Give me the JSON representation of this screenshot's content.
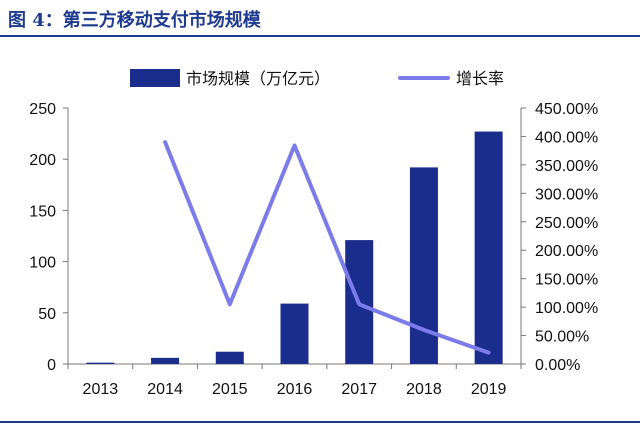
{
  "figure": {
    "title": "图 4：第三方移动支付市场规模"
  },
  "chart_data": {
    "type": "bar",
    "categories": [
      "2013",
      "2014",
      "2015",
      "2016",
      "2017",
      "2018",
      "2019"
    ],
    "series": [
      {
        "name": "市场规模（万亿元）",
        "type": "bar",
        "axis": "left",
        "color": "#1a2c8c",
        "values": [
          1.3,
          6,
          12,
          59,
          121,
          192,
          227
        ]
      },
      {
        "name": "增长率",
        "type": "line",
        "axis": "right",
        "color": "#7b7bea",
        "values": [
          null,
          390,
          105,
          384,
          105,
          60,
          20
        ]
      }
    ],
    "y_left": {
      "ylim": [
        0,
        250
      ],
      "ticks": [
        "0",
        "50",
        "100",
        "150",
        "200",
        "250"
      ]
    },
    "y_right": {
      "ylim": [
        0,
        450
      ],
      "ticks": [
        "0.00%",
        "50.00%",
        "100.00%",
        "150.00%",
        "200.00%",
        "250.00%",
        "300.00%",
        "350.00%",
        "400.00%",
        "450.00%"
      ]
    },
    "legend_position": "top",
    "grid": false
  }
}
